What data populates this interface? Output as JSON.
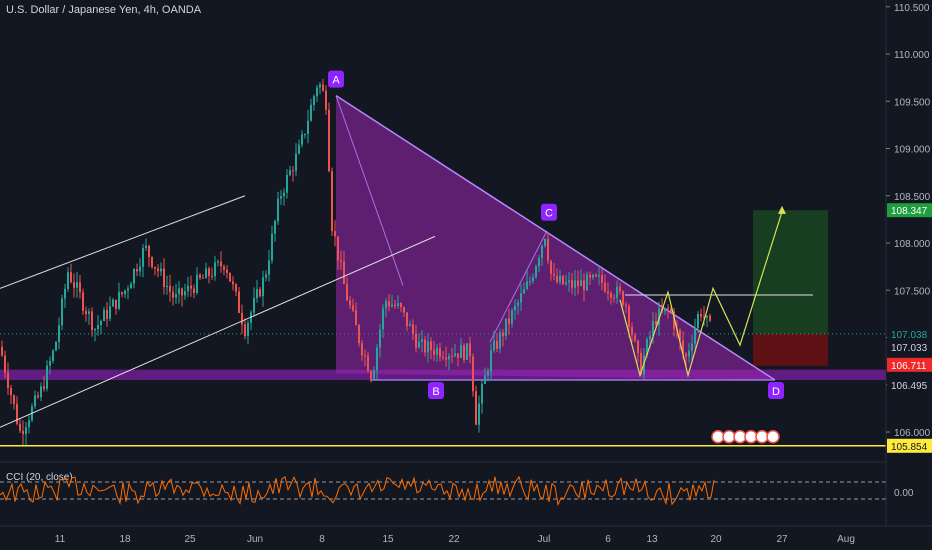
{
  "header": {
    "title": "U.S. Dollar / Japanese Yen, 4h, OANDA",
    "cci_label": "CCI (20, close)"
  },
  "colors": {
    "background": "#131722",
    "bull": "#26a69a",
    "bear": "#ef5350",
    "harmonic": "#9c27b0",
    "band": "#7b1fa2",
    "projection": "#d4e157",
    "support": "#ffeb3b",
    "cci": "#ff6d00",
    "target_zone": "#1b5e20",
    "stop_zone": "#7f1010"
  },
  "chart_data": {
    "type": "candlestick",
    "symbol": "USDJPY",
    "title": "U.S. Dollar / Japanese Yen, 4h, OANDA",
    "y_ticks": [
      "110.500",
      "110.000",
      "109.500",
      "109.000",
      "108.500",
      "108.000",
      "107.500",
      "107.000",
      "106.500",
      "106.000"
    ],
    "x_ticks": [
      "11",
      "18",
      "25",
      "Jun",
      "8",
      "15",
      "22",
      "Jul",
      "6",
      "13",
      "20",
      "27",
      "Aug"
    ],
    "ylim": [
      105.75,
      110.55
    ],
    "pattern_points": [
      {
        "label": "A",
        "price": 109.56
      },
      {
        "label": "B",
        "price": 106.55
      },
      {
        "label": "C",
        "price": 108.13
      },
      {
        "label": "D",
        "price": 106.55
      }
    ],
    "price_labels": [
      {
        "value": "108.347",
        "price": 108.347,
        "color": "#1e9e3e",
        "text_color": "#ffffff"
      },
      {
        "value": "107.038",
        "price": 107.038,
        "color": "#131722",
        "text_color": "#26a69a"
      },
      {
        "value": "107.033",
        "price": 106.9,
        "color": "#131722",
        "text_color": "#d1d4dc"
      },
      {
        "value": "106.711",
        "price": 106.711,
        "color": "#ef2a2a",
        "text_color": "#ffffff"
      },
      {
        "value": "106.495",
        "price": 106.495,
        "color": "#131722",
        "text_color": "#d1d4dc"
      },
      {
        "value": "105.854",
        "price": 105.854,
        "color": "#ffeb3b",
        "text_color": "#131722"
      }
    ],
    "support_level": 105.854,
    "resistance_level": 107.45,
    "cci": {
      "name": "CCI (20, close)",
      "y_tick": "0.00"
    }
  }
}
